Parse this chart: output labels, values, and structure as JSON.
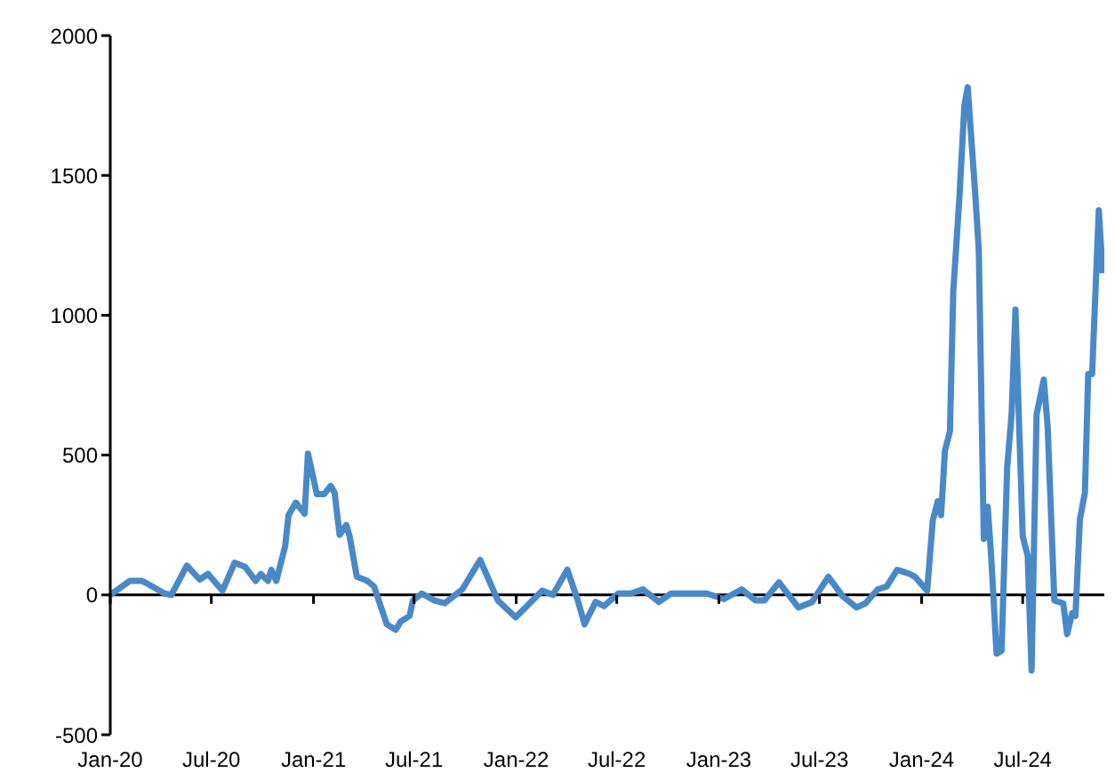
{
  "chart_data": {
    "type": "line",
    "xlim": [
      "2020-01-01",
      "2024-11-25"
    ],
    "ylim": [
      -500,
      2000
    ],
    "yticks": [
      -500,
      0,
      500,
      1000,
      1500,
      2000
    ],
    "xticks": [
      {
        "value": "2020-01-01",
        "label": "Jan-20"
      },
      {
        "value": "2020-07-01",
        "label": "Jul-20"
      },
      {
        "value": "2021-01-01",
        "label": "Jan-21"
      },
      {
        "value": "2021-07-01",
        "label": "Jul-21"
      },
      {
        "value": "2022-01-01",
        "label": "Jan-22"
      },
      {
        "value": "2022-07-01",
        "label": "Jul-22"
      },
      {
        "value": "2023-01-01",
        "label": "Jan-23"
      },
      {
        "value": "2023-07-01",
        "label": "Jul-23"
      },
      {
        "value": "2024-01-01",
        "label": "Jan-24"
      },
      {
        "value": "2024-07-01",
        "label": "Jul-24"
      }
    ],
    "marker": "none",
    "line_style": "solid",
    "x": [
      "2020-01-01",
      "2020-02-05",
      "2020-02-27",
      "2020-03-08",
      "2020-04-08",
      "2020-04-20",
      "2020-05-18",
      "2020-06-10",
      "2020-06-25",
      "2020-07-21",
      "2020-08-12",
      "2020-08-31",
      "2020-09-19",
      "2020-09-28",
      "2020-10-11",
      "2020-10-17",
      "2020-10-26",
      "2020-11-11",
      "2020-11-17",
      "2020-11-30",
      "2020-12-16",
      "2020-12-22",
      "2021-01-07",
      "2021-01-20",
      "2021-02-01",
      "2021-02-08",
      "2021-02-17",
      "2021-03-01",
      "2021-03-07",
      "2021-03-20",
      "2021-04-08",
      "2021-04-20",
      "2021-05-13",
      "2021-05-29",
      "2021-06-07",
      "2021-06-23",
      "2021-06-29",
      "2021-07-15",
      "2021-08-07",
      "2021-08-25",
      "2021-09-26",
      "2021-10-28",
      "2021-11-29",
      "2021-12-31",
      "2022-02-17",
      "2022-03-08",
      "2022-04-03",
      "2022-04-22",
      "2022-05-04",
      "2022-05-24",
      "2022-06-08",
      "2022-07-04",
      "2022-07-26",
      "2022-08-17",
      "2022-09-15",
      "2022-10-07",
      "2022-12-10",
      "2023-01-10",
      "2023-02-11",
      "2023-03-08",
      "2023-03-24",
      "2023-04-19",
      "2023-05-24",
      "2023-06-18",
      "2023-07-17",
      "2023-08-12",
      "2023-09-06",
      "2023-09-22",
      "2023-10-14",
      "2023-10-30",
      "2023-11-18",
      "2023-12-11",
      "2023-12-20",
      "2024-01-11",
      "2024-01-21",
      "2024-01-30",
      "2024-02-05",
      "2024-02-12",
      "2024-02-21",
      "2024-02-27",
      "2024-03-09",
      "2024-03-18",
      "2024-03-24",
      "2024-04-07",
      "2024-04-13",
      "2024-04-22",
      "2024-04-29",
      "2024-05-05",
      "2024-05-15",
      "2024-05-24",
      "2024-06-03",
      "2024-06-11",
      "2024-06-18",
      "2024-06-24",
      "2024-07-01",
      "2024-07-10",
      "2024-07-17",
      "2024-07-26",
      "2024-08-08",
      "2024-08-15",
      "2024-08-27",
      "2024-09-12",
      "2024-09-19",
      "2024-09-28",
      "2024-10-04",
      "2024-10-12",
      "2024-10-21",
      "2024-10-27",
      "2024-11-03",
      "2024-11-15",
      "2024-11-22"
    ],
    "series": [
      {
        "color": "#4a89c8",
        "values": [
          0,
          50,
          50,
          40,
          5,
          0,
          105,
          55,
          75,
          15,
          115,
          100,
          50,
          75,
          50,
          90,
          50,
          175,
          285,
          330,
          290,
          505,
          360,
          360,
          390,
          365,
          215,
          250,
          210,
          65,
          50,
          30,
          -105,
          -125,
          -95,
          -75,
          -20,
          5,
          -20,
          -30,
          20,
          125,
          -20,
          -80,
          15,
          0,
          90,
          -20,
          -105,
          -25,
          -40,
          5,
          5,
          20,
          -25,
          5,
          5,
          -15,
          20,
          -20,
          -20,
          45,
          -45,
          -25,
          65,
          -5,
          -45,
          -30,
          20,
          30,
          90,
          75,
          65,
          15,
          265,
          335,
          285,
          515,
          585,
          1085,
          1420,
          1750,
          1815,
          1420,
          1230,
          200,
          315,
          145,
          -210,
          -200,
          455,
          645,
          1020,
          645,
          210,
          140,
          -270,
          645,
          770,
          600,
          -20,
          -30,
          -140,
          -65,
          -75,
          270,
          365,
          790,
          790,
          1375,
          1150
        ]
      }
    ]
  }
}
